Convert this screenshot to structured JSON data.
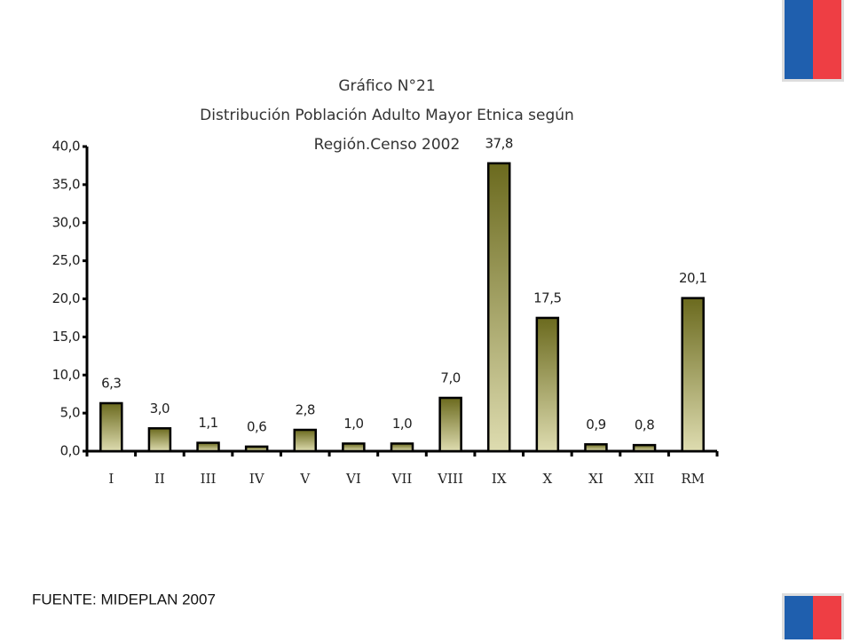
{
  "chart_data": {
    "type": "bar",
    "title": [
      "Gráfico N°21",
      "Distribución Población Adulto Mayor Etnica según",
      "Región.Censo 2002"
    ],
    "categories": [
      "I",
      "II",
      "III",
      "IV",
      "V",
      "VI",
      "VII",
      "VIII",
      "IX",
      "X",
      "XI",
      "XII",
      "RM"
    ],
    "values": [
      6.3,
      3.0,
      1.1,
      0.6,
      2.8,
      1.0,
      1.0,
      7.0,
      37.8,
      17.5,
      0.9,
      0.8,
      20.1
    ],
    "value_labels": [
      "6,3",
      "3,0",
      "1,1",
      "0,6",
      "2,8",
      "1,0",
      "1,0",
      "7,0",
      "37,8",
      "17,5",
      "0,9",
      "0,8",
      "20,1"
    ],
    "color": "#6b6a1e",
    "ylim": [
      0,
      40
    ],
    "yticks": [
      {
        "value": 0,
        "label": "0,0"
      },
      {
        "value": 5,
        "label": "5,0"
      },
      {
        "value": 10,
        "label": "10,0"
      },
      {
        "value": 15,
        "label": "15,0"
      },
      {
        "value": 20,
        "label": "20,0"
      },
      {
        "value": 25,
        "label": "25,0"
      },
      {
        "value": 30,
        "label": "30,0"
      },
      {
        "value": 35,
        "label": "35,0"
      },
      {
        "value": 40,
        "label": "40,0"
      }
    ]
  },
  "source": "FUENTE: MIDEPLAN 2007"
}
